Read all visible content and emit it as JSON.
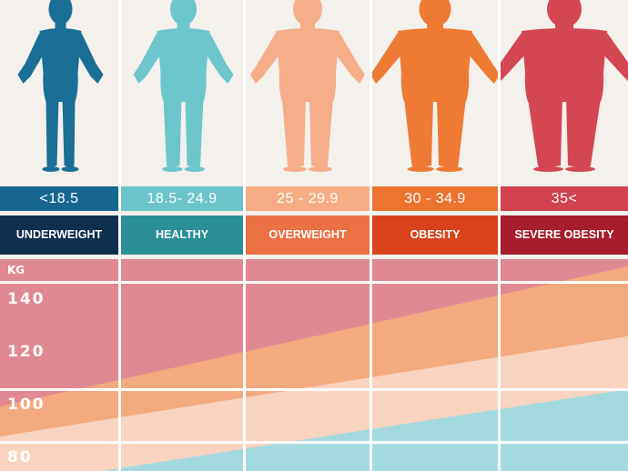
{
  "categories": [
    {
      "bmi": "<18.5",
      "label": "UNDERWEIGHT",
      "figure_color": "#1b6e96",
      "bmi_color": "#17668f",
      "cat_color": "#0f2f4e"
    },
    {
      "bmi": "18.5- 24.9",
      "label": "HEALTHY",
      "figure_color": "#6cc6cc",
      "bmi_color": "#6cc4cb",
      "cat_color": "#2a8f96"
    },
    {
      "bmi": "25 - 29.9",
      "label": "OVERWEIGHT",
      "figure_color": "#f5ad8a",
      "bmi_color": "#f6ad86",
      "cat_color": "#eb7043"
    },
    {
      "bmi": "30 - 34.9",
      "label": "OBESITY",
      "figure_color": "#ee7a34",
      "bmi_color": "#ec7430",
      "cat_color": "#d9421c"
    },
    {
      "bmi": "35<",
      "label": "SEVERE OBESITY",
      "figure_color": "#d44652",
      "bmi_color": "#d2434f",
      "cat_color": "#a61d2c"
    }
  ],
  "weight_axis": {
    "unit": "KG",
    "ticks": [
      "140",
      "120",
      "100",
      "80"
    ]
  },
  "band_colors": {
    "severe": "#e18993",
    "obese": "#f3aa7f",
    "overweight": "#f9d4c0",
    "healthy": "#a4dadf"
  }
}
